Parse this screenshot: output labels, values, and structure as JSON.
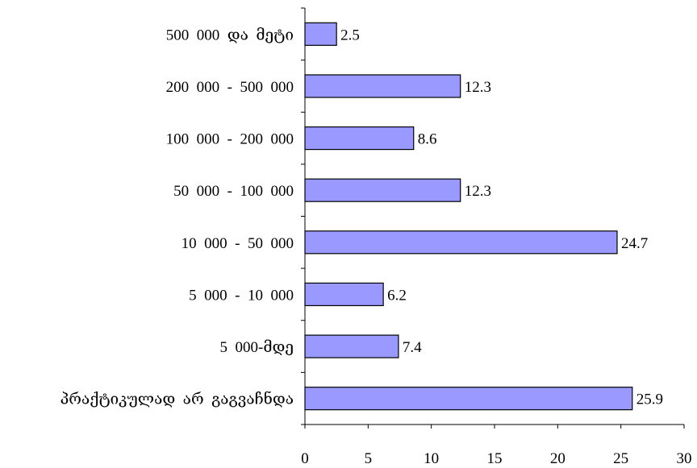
{
  "chart_data": {
    "type": "bar",
    "orientation": "horizontal",
    "categories": [
      "500  000  და  მეტი",
      "200  000  -  500  000",
      "100  000  -  200  000",
      "50  000  -  100  000",
      "10  000  -  50  000",
      "5  000  -  10  000",
      "5  000-მდე",
      "პრაქტიკულად  არ  გაგვაჩნდა"
    ],
    "values": [
      2.5,
      12.3,
      8.6,
      12.3,
      24.7,
      6.2,
      7.4,
      25.9
    ],
    "value_labels": [
      "2.5",
      "12.3",
      "8.6",
      "12.3",
      "24.7",
      "6.2",
      "7.4",
      "25.9"
    ],
    "xlim": [
      0,
      30
    ],
    "xticks": [
      0,
      5,
      10,
      15,
      20,
      25,
      30
    ],
    "xtick_labels": [
      "0",
      "5",
      "10",
      "15",
      "20",
      "25",
      "30"
    ],
    "title": "",
    "xlabel": "",
    "ylabel": "",
    "grid": false,
    "legend": "none",
    "bar_color": "#9999ff",
    "bar_edge_color": "#000000"
  }
}
